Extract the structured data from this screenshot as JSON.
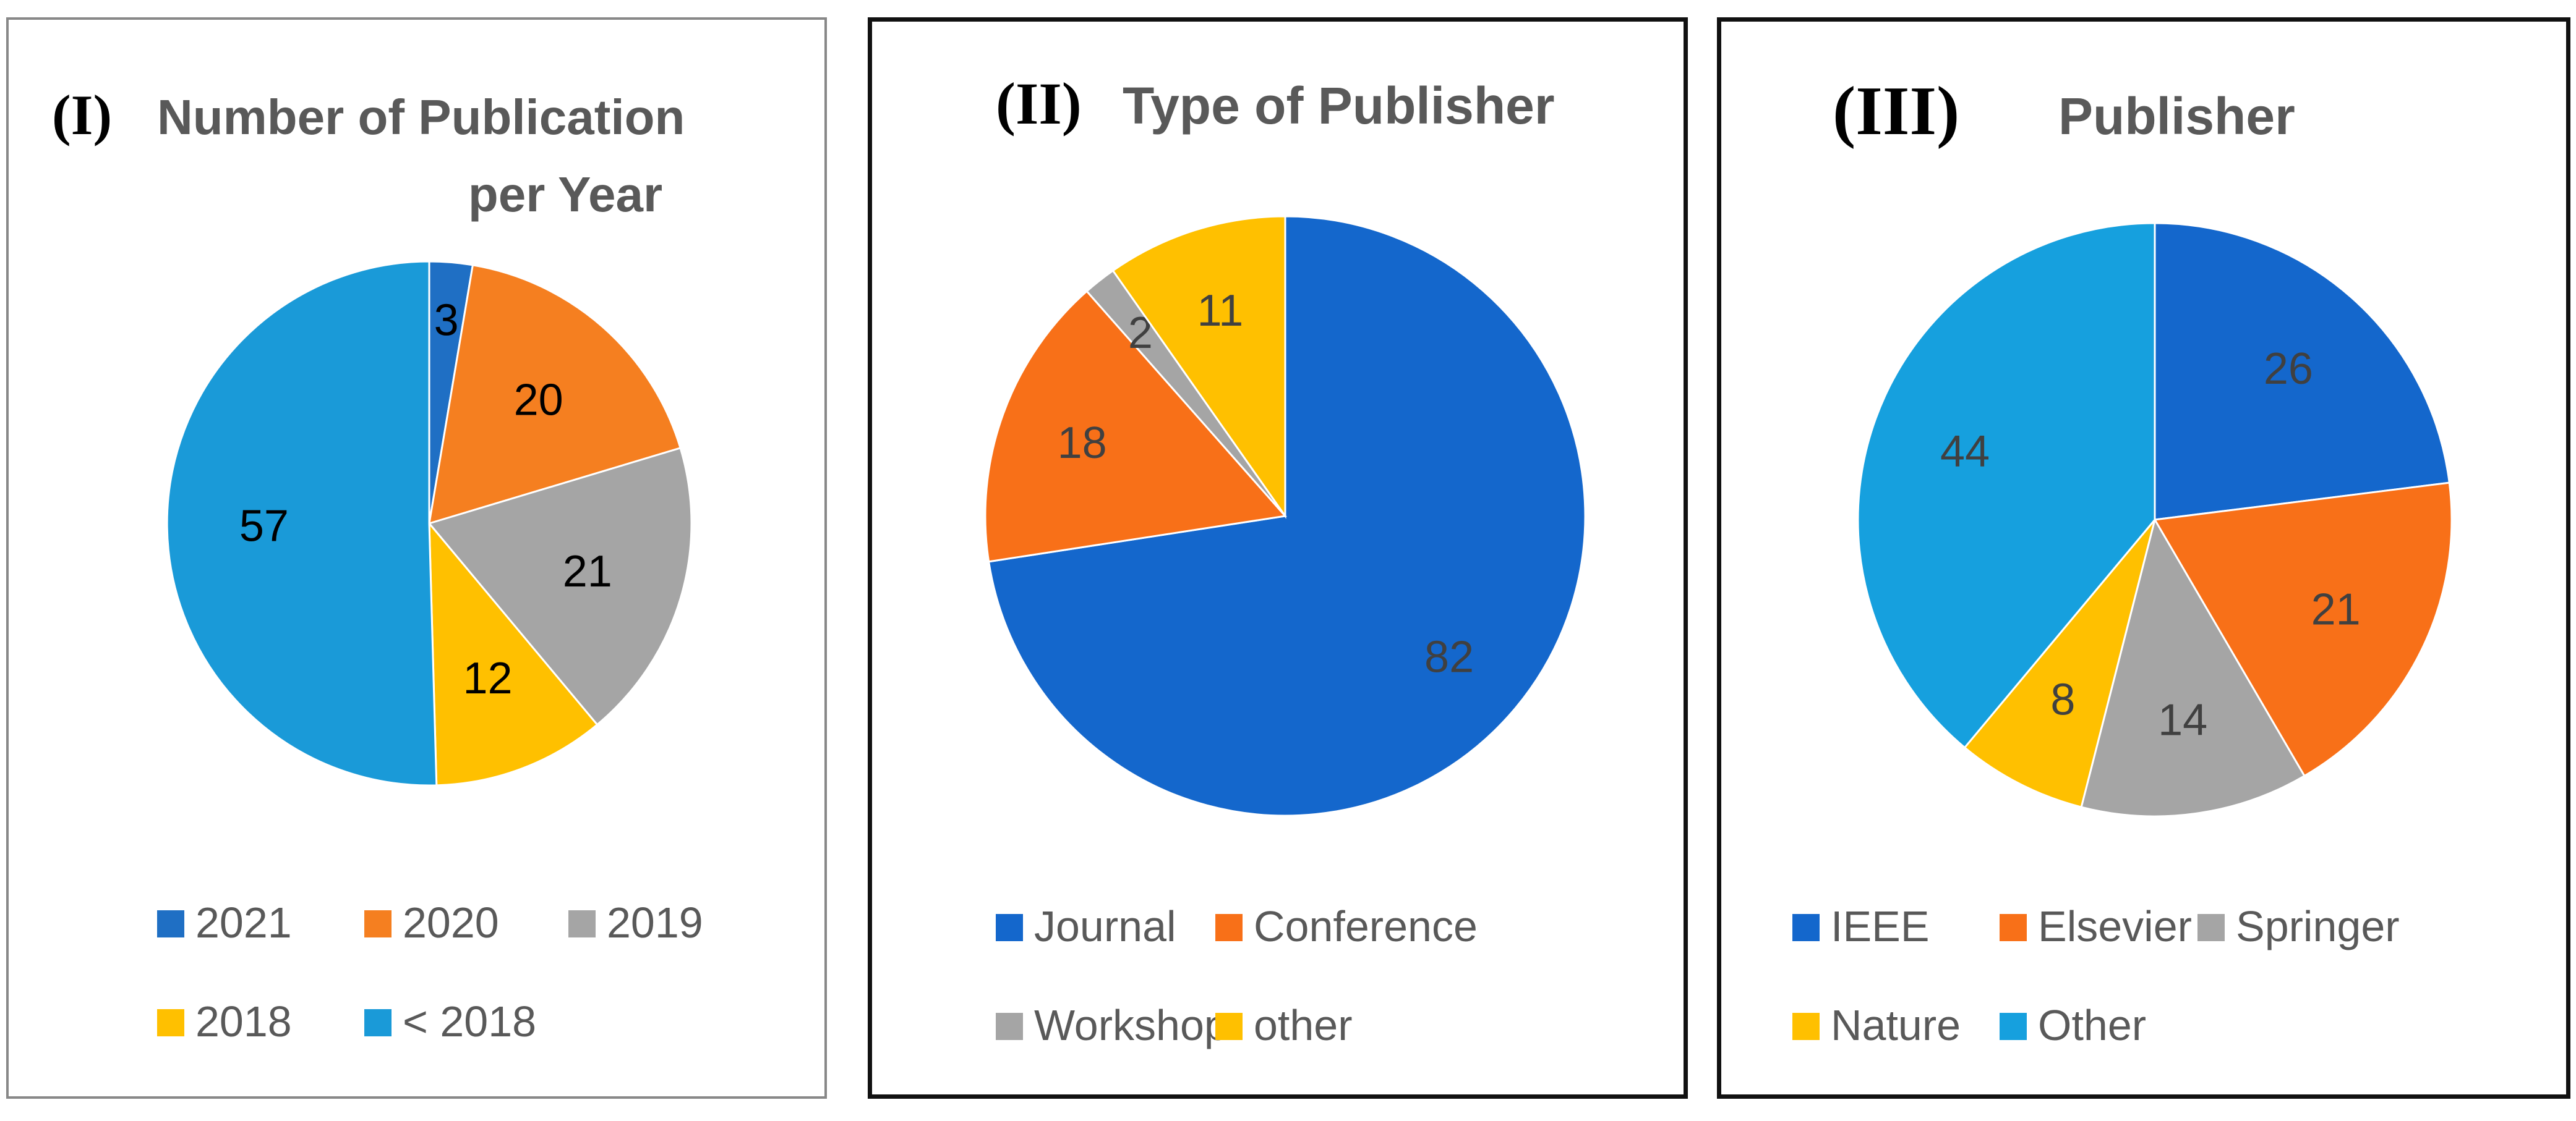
{
  "chart_data": [
    {
      "type": "pie",
      "title_number": "(I)",
      "title": "Number of Publication per Year",
      "title_lines": [
        "Number of Publication",
        "per Year"
      ],
      "categories": [
        "2021",
        "2020",
        "2019",
        "2018",
        "< 2018"
      ],
      "values": [
        3,
        20,
        21,
        12,
        57
      ],
      "colors": [
        "#1f6fc4",
        "#f57f20",
        "#a5a5a5",
        "#ffc000",
        "#1a9ad8"
      ],
      "legend": "bottom"
    },
    {
      "type": "pie",
      "title_number": "(II)",
      "title": "Type of Publisher",
      "title_lines": [
        "Type of Publisher"
      ],
      "categories": [
        "Journal",
        "Conference",
        "Workshop",
        "other"
      ],
      "values": [
        82,
        18,
        2,
        11
      ],
      "colors": [
        "#1467cc",
        "#f87018",
        "#a5a5a5",
        "#ffc000"
      ],
      "legend": "bottom"
    },
    {
      "type": "pie",
      "title_number": "(III)",
      "title": "Publisher",
      "title_lines": [
        "Publisher"
      ],
      "categories": [
        "IEEE",
        "Elsevier",
        "Springer",
        "Nature",
        "Other"
      ],
      "values": [
        26,
        21,
        14,
        8,
        44
      ],
      "colors": [
        "#1467cc",
        "#f87018",
        "#a5a5a5",
        "#ffc000",
        "#16a0de"
      ],
      "legend": "bottom"
    }
  ]
}
